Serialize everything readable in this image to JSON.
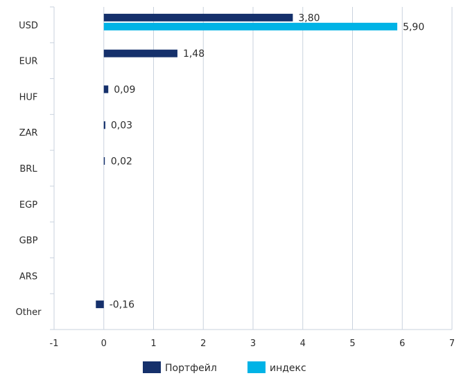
{
  "chart_data": {
    "type": "bar",
    "orientation": "horizontal",
    "categories": [
      "USD",
      "EUR",
      "HUF",
      "ZAR",
      "BRL",
      "EGP",
      "GBP",
      "ARS",
      "Other"
    ],
    "series": [
      {
        "name": "Портфейл",
        "color": "#15306b",
        "values": [
          3.8,
          1.48,
          0.09,
          0.03,
          0.02,
          0,
          0,
          0,
          -0.16
        ],
        "labels": [
          "3,80",
          "1,48",
          "0,09",
          "0,03",
          "0,02",
          "",
          "",
          "",
          "-0,16"
        ]
      },
      {
        "name": "индекс",
        "color": "#00b3e6",
        "values": [
          5.9,
          0,
          0,
          0,
          0,
          0,
          0,
          0,
          0
        ],
        "labels": [
          "5,90",
          "",
          "",
          "",
          "",
          "",
          "",
          "",
          ""
        ]
      }
    ],
    "x_ticks": [
      "-1",
      "0",
      "1",
      "2",
      "3",
      "4",
      "5",
      "6",
      "7"
    ],
    "xlim": [
      -1,
      7
    ],
    "grid": "vertical",
    "legend_position": "bottom"
  }
}
